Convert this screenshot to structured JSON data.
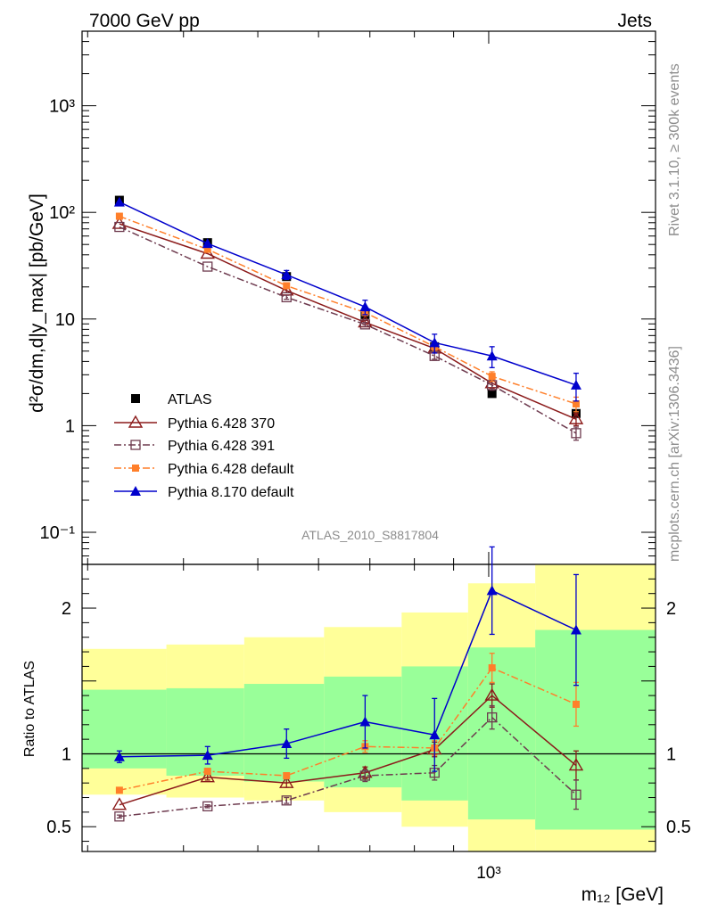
{
  "header": {
    "left": "7000 GeV pp",
    "right": "Jets"
  },
  "side": {
    "top": "Rivet 3.1.10, ≥ 300k events",
    "bottom": "mcplots.cern.ch [arXiv:1306.3436]"
  },
  "analysis_label": "ATLAS_2010_S8817804",
  "chart_data": [
    {
      "type": "line",
      "panel": "main",
      "ylabel": "d²σ/dm,d|y_max| [pb/GeV]",
      "yscale": "log",
      "ylim": [
        0.05,
        5000
      ],
      "xscale": "log",
      "xlim": [
        295,
        1650
      ],
      "yticks": [
        {
          "v": 0.1,
          "label": "10⁻¹"
        },
        {
          "v": 1,
          "label": "1"
        },
        {
          "v": 10,
          "label": "10"
        },
        {
          "v": 100,
          "label": "10²"
        },
        {
          "v": 1000,
          "label": "10³"
        }
      ],
      "legend": "left",
      "series": [
        {
          "name": "ATLAS",
          "color": "#000000",
          "marker": "square-filled",
          "dash": "",
          "x": [
            330,
            430,
            545,
            690,
            850,
            1010,
            1300
          ],
          "y": [
            130,
            52,
            25,
            11,
            5.5,
            2.0,
            1.3
          ],
          "err": [
            0,
            0,
            0,
            0,
            0,
            0,
            0
          ]
        },
        {
          "name": "Pythia 6.428 370",
          "color": "#8b1a1a",
          "marker": "triangle-open",
          "dash": "",
          "x": [
            330,
            430,
            545,
            690,
            850,
            1010,
            1300
          ],
          "y": [
            78,
            41,
            18.5,
            9.3,
            5.3,
            2.5,
            1.15
          ],
          "err": [
            0,
            0,
            0.8,
            0.4,
            0.3,
            0.25,
            0.15
          ]
        },
        {
          "name": "Pythia 6.428 391",
          "color": "#6e3b4f",
          "marker": "square-open",
          "dash": "8,3,2,3",
          "x": [
            330,
            430,
            545,
            690,
            850,
            1010,
            1300
          ],
          "y": [
            73,
            31,
            16,
            8.9,
            4.5,
            2.4,
            0.85
          ],
          "err": [
            0,
            0,
            0.7,
            0.4,
            0.3,
            0.25,
            0.12
          ]
        },
        {
          "name": "Pythia 6.428 default",
          "color": "#ff7f2a",
          "marker": "square-filled-small",
          "dash": "8,3,2,3",
          "x": [
            330,
            430,
            545,
            690,
            850,
            1010,
            1300
          ],
          "y": [
            92,
            45,
            20.5,
            11.5,
            5.5,
            2.9,
            1.6
          ],
          "err": [
            0,
            0,
            0.8,
            0.5,
            0.4,
            0.3,
            0.25
          ]
        },
        {
          "name": "Pythia 8.170 default",
          "color": "#0000cc",
          "marker": "triangle-filled",
          "dash": "",
          "x": [
            330,
            430,
            545,
            690,
            850,
            1010,
            1300
          ],
          "y": [
            125,
            51,
            26,
            13,
            6.0,
            4.5,
            2.4
          ],
          "err": [
            0,
            0,
            2.5,
            2.0,
            1.2,
            1.0,
            0.7
          ]
        }
      ]
    },
    {
      "type": "line",
      "panel": "ratio",
      "ylabel": "Ratio to ATLAS",
      "ylim": [
        0.33,
        2.3
      ],
      "xlabel": "m₁₂ [GeV]",
      "xscale": "log",
      "xlim": [
        295,
        1650
      ],
      "xticks": [
        {
          "v": 1000,
          "label": "10³"
        }
      ],
      "yticks": [
        {
          "v": 0.5,
          "label": "0.5"
        },
        {
          "v": 1,
          "label": "1"
        },
        {
          "v": 1.5,
          "label": ""
        },
        {
          "v": 2,
          "label": "2"
        }
      ],
      "bands": {
        "edges": [
          295,
          380,
          480,
          610,
          770,
          940,
          1150,
          1650
        ],
        "yellow_lo": [
          0.72,
          0.7,
          0.68,
          0.6,
          0.5,
          0.33,
          0.33
        ],
        "yellow_hi": [
          1.72,
          1.75,
          1.8,
          1.87,
          1.97,
          2.17,
          2.3
        ],
        "green_lo": [
          0.9,
          0.85,
          0.81,
          0.77,
          0.68,
          0.55,
          0.48
        ],
        "green_hi": [
          1.44,
          1.45,
          1.48,
          1.53,
          1.6,
          1.73,
          1.85
        ]
      },
      "series": [
        {
          "name": "Pythia 6.428 370",
          "color": "#8b1a1a",
          "marker": "triangle-open",
          "dash": "",
          "x": [
            330,
            430,
            545,
            690,
            850,
            1010,
            1300
          ],
          "y": [
            0.65,
            0.84,
            0.8,
            0.87,
            1.03,
            1.4,
            0.92
          ],
          "err": [
            0,
            0.02,
            0.03,
            0.04,
            0.05,
            0.08,
            0.1
          ]
        },
        {
          "name": "Pythia 6.428 391",
          "color": "#6e3b4f",
          "marker": "square-open",
          "dash": "8,3,2,3",
          "x": [
            330,
            430,
            545,
            690,
            850,
            1010,
            1300
          ],
          "y": [
            0.57,
            0.64,
            0.68,
            0.85,
            0.87,
            1.25,
            0.72
          ],
          "err": [
            0.01,
            0.01,
            0.02,
            0.04,
            0.05,
            0.08,
            0.1
          ]
        },
        {
          "name": "Pythia 6.428 default",
          "color": "#ff7f2a",
          "marker": "square-filled-small",
          "dash": "8,3,2,3",
          "x": [
            330,
            430,
            545,
            690,
            850,
            1010,
            1300
          ],
          "y": [
            0.75,
            0.88,
            0.85,
            1.05,
            1.04,
            1.59,
            1.34
          ],
          "err": [
            0,
            0.02,
            0.02,
            0.04,
            0.05,
            0.1,
            0.15
          ]
        },
        {
          "name": "Pythia 8.170 default",
          "color": "#0000cc",
          "marker": "triangle-filled",
          "dash": "",
          "x": [
            330,
            430,
            545,
            690,
            850,
            1010,
            1300
          ],
          "y": [
            0.98,
            0.99,
            1.07,
            1.22,
            1.13,
            2.12,
            1.85
          ],
          "err": [
            0.04,
            0.06,
            0.1,
            0.18,
            0.25,
            0.3,
            0.38
          ]
        }
      ]
    }
  ]
}
